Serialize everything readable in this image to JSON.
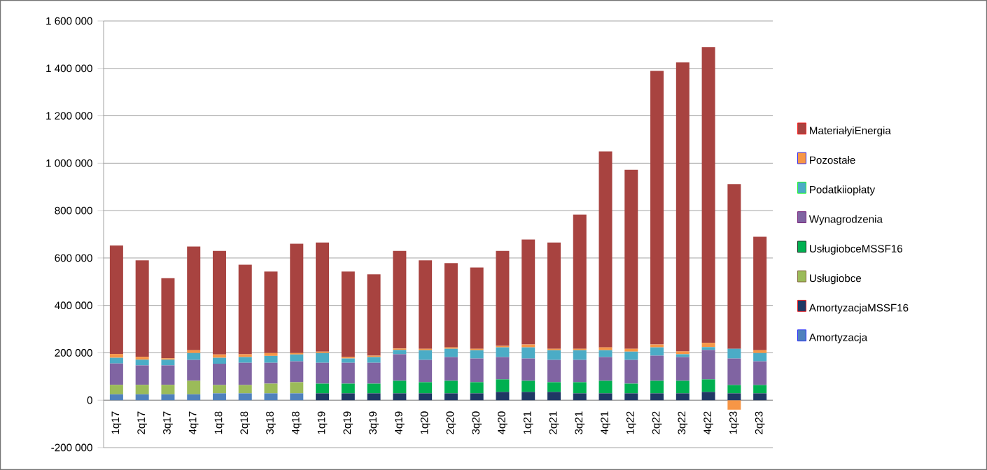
{
  "chart_data": {
    "type": "bar",
    "stacked": true,
    "categories": [
      "1q17",
      "2q17",
      "3q17",
      "4q17",
      "1q18",
      "2q18",
      "3q18",
      "4q18",
      "1q19",
      "2q19",
      "3q19",
      "4q19",
      "1q20",
      "2q20",
      "3q20",
      "4q20",
      "1q21",
      "2q21",
      "3q21",
      "4q21",
      "1q22",
      "2q22",
      "3q22",
      "4q22",
      "1q23",
      "2q23"
    ],
    "series": [
      {
        "name": "Amortyzacja",
        "color": "#4f81bd",
        "values": [
          25000,
          25000,
          25000,
          25000,
          29000,
          29000,
          29000,
          29000,
          null,
          null,
          null,
          null,
          null,
          null,
          null,
          null,
          null,
          null,
          null,
          null,
          null,
          null,
          null,
          null,
          null,
          null
        ]
      },
      {
        "name": "AmortyzacjaMSSF16",
        "color": "#1f3864",
        "values": [
          null,
          null,
          null,
          null,
          null,
          null,
          null,
          null,
          29000,
          29000,
          29000,
          29000,
          29000,
          29000,
          29000,
          35000,
          35000,
          35000,
          29000,
          29000,
          29000,
          29000,
          29000,
          35000,
          29000,
          29000
        ]
      },
      {
        "name": "Usługiobce",
        "color": "#9bbb59",
        "values": [
          40000,
          40000,
          40000,
          57000,
          35000,
          35000,
          41000,
          47000,
          null,
          null,
          null,
          null,
          null,
          null,
          null,
          null,
          null,
          null,
          null,
          null,
          null,
          null,
          null,
          null,
          null,
          null
        ]
      },
      {
        "name": "UsługiobceMSSF16",
        "color": "#00b050",
        "values": [
          null,
          null,
          null,
          null,
          null,
          null,
          null,
          null,
          41000,
          41000,
          41000,
          53000,
          47000,
          53000,
          47000,
          53000,
          47000,
          41000,
          47000,
          53000,
          41000,
          53000,
          53000,
          53000,
          35000,
          35000
        ]
      },
      {
        "name": "Wynagrodzenia",
        "color": "#8064a2",
        "values": [
          90000,
          82000,
          82000,
          88000,
          90000,
          94000,
          88000,
          88000,
          88000,
          88000,
          88000,
          112000,
          94000,
          100000,
          100000,
          94000,
          94000,
          94000,
          94000,
          100000,
          100000,
          106000,
          100000,
          124000,
          112000,
          100000
        ]
      },
      {
        "name": "Podatkiiopłaty",
        "color": "#4bacc6",
        "values": [
          24000,
          24000,
          24000,
          29000,
          25000,
          24000,
          29000,
          29000,
          41000,
          18000,
          24000,
          18000,
          41000,
          35000,
          35000,
          41000,
          47000,
          41000,
          41000,
          29000,
          35000,
          35000,
          12000,
          12000,
          41000,
          35000
        ]
      },
      {
        "name": "Pozostałe",
        "color": "#f79646",
        "values": [
          16000,
          12000,
          6000,
          12000,
          14000,
          12000,
          12000,
          6000,
          6000,
          6000,
          6000,
          6000,
          6000,
          6000,
          6000,
          6000,
          12000,
          6000,
          6000,
          12000,
          12000,
          12000,
          12000,
          18000,
          -40000,
          12000
        ]
      },
      {
        "name": "MateriałyiEnergia",
        "color": "#a84340",
        "values": [
          458000,
          407000,
          338000,
          437000,
          437000,
          378000,
          344000,
          461000,
          460000,
          361000,
          343000,
          412000,
          373000,
          355000,
          343000,
          401000,
          443000,
          448000,
          566000,
          827000,
          755000,
          1155000,
          1219000,
          1248000,
          695000,
          479000
        ]
      }
    ],
    "ylim": [
      -200000,
      1600000
    ],
    "yticks": [
      {
        "value": -200000,
        "label": "-200 000"
      },
      {
        "value": 0,
        "label": "0"
      },
      {
        "value": 200000,
        "label": "200 000"
      },
      {
        "value": 400000,
        "label": "400 000"
      },
      {
        "value": 600000,
        "label": "600 000"
      },
      {
        "value": 800000,
        "label": "800 000"
      },
      {
        "value": 1000000,
        "label": "1 000 000"
      },
      {
        "value": 1200000,
        "label": "1 200 000"
      },
      {
        "value": 1400000,
        "label": "1 400 000"
      },
      {
        "value": 1600000,
        "label": "1 600 000"
      }
    ],
    "grid": "y",
    "legend": "right"
  }
}
